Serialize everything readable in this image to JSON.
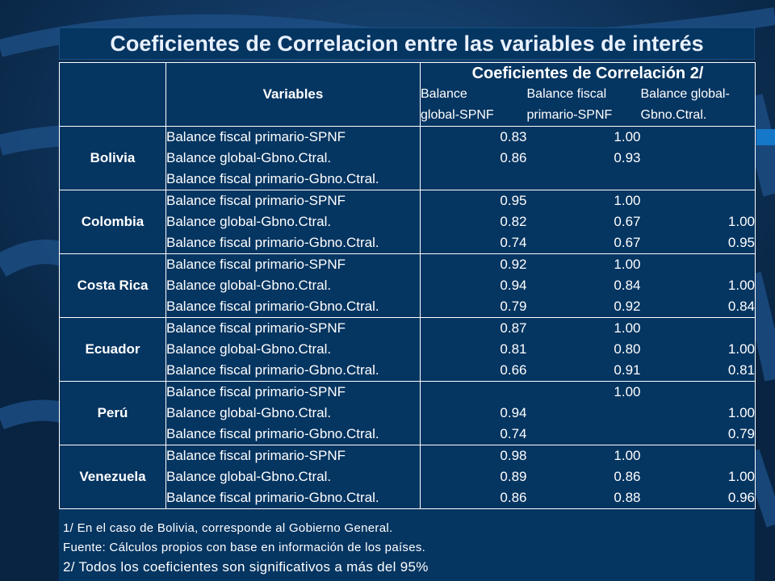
{
  "title": "Coeficientes de Correlacion entre las variables de interés",
  "header": {
    "variables": "Variables",
    "coef_title": "Coeficientes de Correlación 2/",
    "columns": [
      {
        "line1": "Balance",
        "line2": "global-SPNF"
      },
      {
        "line1": "Balance fiscal",
        "line2": "primario-SPNF"
      },
      {
        "line1": "Balance global-",
        "line2": "Gbno.Ctral."
      }
    ]
  },
  "rows": [
    {
      "country": "Bolivia",
      "items": [
        {
          "var": "Balance fiscal primario-SPNF",
          "v": [
            "0.83",
            "1.00",
            ""
          ]
        },
        {
          "var": "Balance global-Gbno.Ctral.",
          "v": [
            "0.86",
            "0.93",
            ""
          ]
        },
        {
          "var": "Balance fiscal primario-Gbno.Ctral.",
          "v": [
            "",
            "",
            ""
          ]
        }
      ]
    },
    {
      "country": "Colombia",
      "items": [
        {
          "var": "Balance fiscal primario-SPNF",
          "v": [
            "0.95",
            "1.00",
            ""
          ]
        },
        {
          "var": "Balance global-Gbno.Ctral.",
          "v": [
            "0.82",
            "0.67",
            "1.00"
          ]
        },
        {
          "var": "Balance fiscal primario-Gbno.Ctral.",
          "v": [
            "0.74",
            "0.67",
            "0.95"
          ]
        }
      ]
    },
    {
      "country": "Costa Rica",
      "items": [
        {
          "var": "Balance fiscal primario-SPNF",
          "v": [
            "0.92",
            "1.00",
            ""
          ]
        },
        {
          "var": "Balance global-Gbno.Ctral.",
          "v": [
            "0.94",
            "0.84",
            "1.00"
          ]
        },
        {
          "var": "Balance fiscal primario-Gbno.Ctral.",
          "v": [
            "0.79",
            "0.92",
            "0.84"
          ]
        }
      ]
    },
    {
      "country": "Ecuador",
      "items": [
        {
          "var": "Balance fiscal primario-SPNF",
          "v": [
            "0.87",
            "1.00",
            ""
          ]
        },
        {
          "var": "Balance global-Gbno.Ctral.",
          "v": [
            "0.81",
            "0.80",
            "1.00"
          ]
        },
        {
          "var": "Balance fiscal primario-Gbno.Ctral.",
          "v": [
            "0.66",
            "0.91",
            "0.81"
          ]
        }
      ]
    },
    {
      "country": "Perú",
      "items": [
        {
          "var": "Balance fiscal primario-SPNF",
          "v": [
            "",
            "1.00",
            ""
          ]
        },
        {
          "var": "Balance global-Gbno.Ctral.",
          "v": [
            "0.94",
            "",
            "1.00"
          ]
        },
        {
          "var": "Balance fiscal primario-Gbno.Ctral.",
          "v": [
            "0.74",
            "",
            "0.79"
          ]
        }
      ]
    },
    {
      "country": "Venezuela",
      "items": [
        {
          "var": "Balance fiscal primario-SPNF",
          "v": [
            "0.98",
            "1.00",
            ""
          ]
        },
        {
          "var": "Balance global-Gbno.Ctral.",
          "v": [
            "0.89",
            "0.86",
            "1.00"
          ]
        },
        {
          "var": "Balance fiscal primario-Gbno.Ctral.",
          "v": [
            "0.86",
            "0.88",
            "0.96"
          ]
        }
      ]
    }
  ],
  "notes": [
    "1/ En el caso de Bolivia, corresponde al Gobierno General.",
    "Fuente: Cálculos propios con base en información de los países.",
    "2/ Todos los coeficientes son significativos a más del 95%"
  ],
  "colors": {
    "background": "#0b2a4e",
    "panel": "#053561",
    "text": "#ffffff",
    "wave": "#1d4f86"
  }
}
